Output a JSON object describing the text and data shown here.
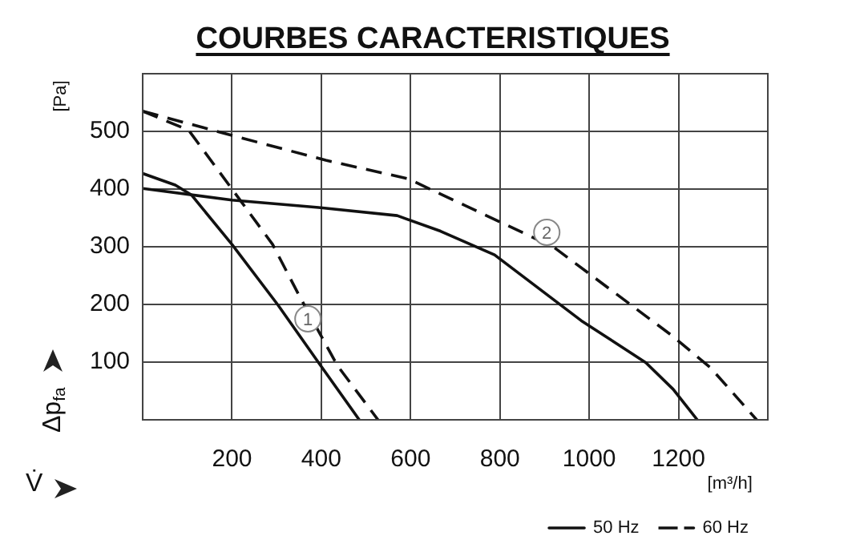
{
  "chart_data": {
    "type": "line",
    "title": "COURBES CARACTERISTIQUES",
    "xlabel": "[m³/h]",
    "ylabel": "[Pa]",
    "annotations": [
      "Δp$_{fa}$",
      "V̇",
      {
        "text": "1",
        "x": 370,
        "y": 175
      },
      {
        "text": "2",
        "x": 905,
        "y": 325
      }
    ],
    "xlim": [
      0,
      1400
    ],
    "xticks": [
      200,
      400,
      600,
      800,
      1000,
      1200
    ],
    "ylim": [
      0,
      600
    ],
    "yticks": [
      100,
      200,
      300,
      400,
      500
    ],
    "grid": true,
    "legend": "bottom right",
    "marker": "none",
    "series": [
      {
        "name": "50 Hz",
        "color": "#111111",
        "line_style": "solid",
        "x": [
          0,
          73,
          109,
          200,
          303,
          394,
          485
        ],
        "values": [
          427,
          407,
          390,
          304,
          199,
          99,
          0
        ]
      },
      {
        "name": "60 Hz",
        "color": "#111111",
        "line_style": "dashed",
        "x": [
          0,
          103,
          200,
          291,
          352,
          436,
          527
        ],
        "values": [
          535,
          502,
          400,
          304,
          213,
          94,
          0
        ]
      },
      {
        "color": "#111111",
        "line_style": "solid",
        "x": [
          0,
          200,
          394,
          570,
          667,
          788,
          982,
          1127,
          1188,
          1242
        ],
        "values": [
          401,
          381,
          368,
          354,
          327,
          286,
          172,
          99,
          53,
          0
        ]
      },
      {
        "color": "#111111",
        "line_style": "dashed",
        "x": [
          0,
          200,
          410,
          594,
          921,
          1187,
          1272,
          1350,
          1375
        ],
        "values": [
          535,
          493,
          450,
          418,
          299,
          145,
          90,
          22,
          0
        ]
      }
    ]
  }
}
